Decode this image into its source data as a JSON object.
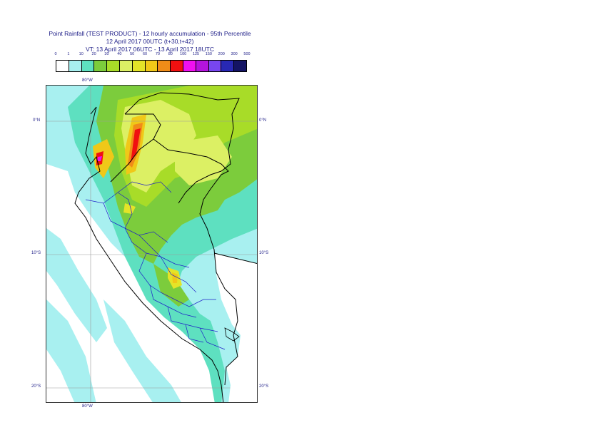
{
  "title": {
    "line1": "Point Rainfall (TEST PRODUCT) - 12 hourly accumulation - 95th Percentile",
    "line2": "12 April 2017 00UTC (t+30,t+42)",
    "line3": "VT: 13 April 2017 06UTC - 13 April 2017 18UTC"
  },
  "legend": {
    "labels": [
      "0",
      "1",
      "10",
      "20",
      "30",
      "40",
      "50",
      "60",
      "70",
      "80",
      "100",
      "125",
      "150",
      "200",
      "300",
      "500"
    ],
    "colors": [
      "#ffffff",
      "#a8f0f0",
      "#5ee0c0",
      "#7ccc3c",
      "#a8dc28",
      "#dcf064",
      "#e4e428",
      "#f0c818",
      "#f08c18",
      "#f01010",
      "#f010f0",
      "#b414dc",
      "#7846f0",
      "#2828b4",
      "#141464"
    ]
  },
  "axes": {
    "top_lon": "80°W",
    "bottom_lon": "80°W",
    "lat_left": [
      "0°N",
      "10°S",
      "20°S"
    ],
    "lat_right": [
      "0°N",
      "10°S",
      "20°S"
    ]
  },
  "colors": {
    "border": "#000000",
    "admin": "#1f1fc8",
    "grid": "#9a9a9a",
    "text": "#22228a"
  }
}
